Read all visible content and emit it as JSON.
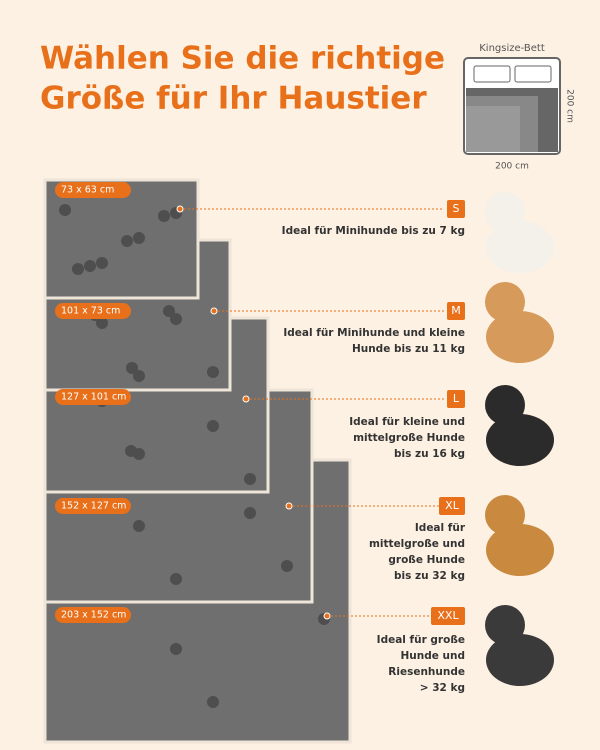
{
  "title": [
    "Wählen Sie die richtige",
    "Größe für Ihr Haustier"
  ],
  "bed": {
    "label": "Kingsize-Bett",
    "height": "200 cm",
    "width": "200 cm"
  },
  "sizes": [
    {
      "dimensions": "73 x 63 cm",
      "size": "S",
      "description": [
        "Ideal für Minihunde bis zu 7 kg"
      ]
    },
    {
      "dimensions": "101 x 73 cm",
      "size": "M",
      "description": [
        "Ideal für Minihunde und kleine",
        "Hunde bis zu 11 kg"
      ]
    },
    {
      "dimensions": "127 x 101 cm",
      "size": "L",
      "description": [
        "Ideal für kleine und",
        "mittelgroße Hunde",
        "bis zu 16 kg"
      ]
    },
    {
      "dimensions": "152 x 127 cm",
      "size": "XL",
      "description": [
        "Ideal für",
        "mittelgroße und",
        "große Hunde",
        "bis zu 32 kg"
      ]
    },
    {
      "dimensions": "203 x 152 cm",
      "size": "XXL",
      "description": [
        "Ideal für große",
        "Hunde und",
        "Riesenhunde",
        "> 32 kg"
      ]
    }
  ]
}
